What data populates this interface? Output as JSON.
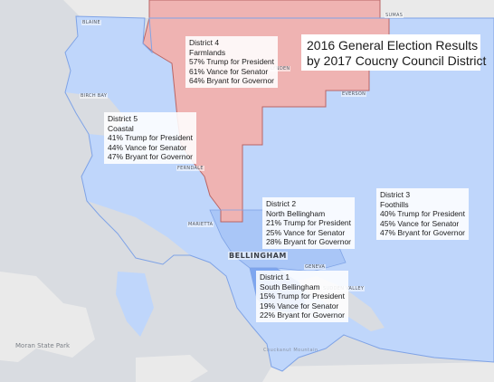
{
  "map": {
    "title_line1": "2016 General Election Results",
    "title_line2": "by 2017 Coucny Council District",
    "colors": {
      "water": "#d9dce1",
      "land": "#eaeaea",
      "district_blue": "#bfd6fb",
      "district_blue_mid": "#a9c6f7",
      "district_blue_dark": "#7ea6ef",
      "district_red": "#efb3b2",
      "border_blue": "#7fa3e6",
      "border_red": "#b86565"
    },
    "places": {
      "blaine": "BLAINE",
      "sumas": "SUMAS",
      "birch_bay": "BIRCH BAY",
      "lynden": "LYNDEN",
      "everson": "EVERSON",
      "ferndale": "FERNDALE",
      "marietta": "MARIETTA",
      "bellingham": "BELLINGHAM",
      "geneva": "GENEVA",
      "sudden_valley": "SUDDEN VALLEY",
      "moran_park": "Moran State Park",
      "chuckanut": "Chuckanut Mountain"
    },
    "districts": [
      {
        "name": "District 4",
        "area": "Farmlands",
        "president": "57% Trump for President",
        "senator": "61% Vance for Senator",
        "governor": "64% Bryant for Governor"
      },
      {
        "name": "District 5",
        "area": "Coastal",
        "president": "41% Trump for President",
        "senator": "44% Vance for Senator",
        "governor": "47% Bryant for Governor"
      },
      {
        "name": "District 2",
        "area": "North Bellingham",
        "president": "21% Trump for President",
        "senator": "25% Vance for Senator",
        "governor": "28% Bryant for Governor"
      },
      {
        "name": "District 3",
        "area": "Foothills",
        "president": "40% Trump for President",
        "senator": "45% Vance for Senator",
        "governor": "47% Bryant for Governor"
      },
      {
        "name": "District 1",
        "area": "South Bellingham",
        "president": "15% Trump for President",
        "senator": "19% Vance for Senator",
        "governor": "22% Bryant for Governor"
      }
    ]
  }
}
